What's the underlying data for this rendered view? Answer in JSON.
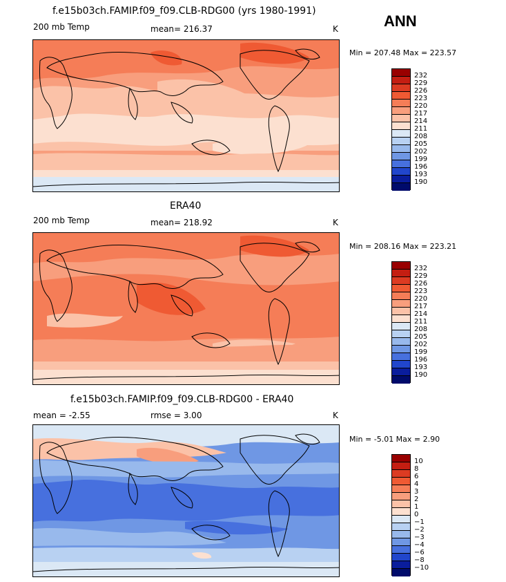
{
  "season": "ANN",
  "panels": [
    {
      "title": "f.e15b03ch.FAMIP.f09_f09.CLB-RDG00 (yrs 1980-1991)",
      "field": "200 mb Temp",
      "stat1": "mean= 216.37",
      "stat2": "",
      "units": "K",
      "minmax": "Min = 207.48 Max = 223.57",
      "colorbar": {
        "labels": [
          "232",
          "229",
          "226",
          "223",
          "220",
          "217",
          "214",
          "211",
          "208",
          "205",
          "202",
          "199",
          "196",
          "193",
          "190"
        ],
        "colors": [
          "#990000",
          "#c41e12",
          "#dc3b22",
          "#ef5a33",
          "#f57d57",
          "#f89e7d",
          "#fbc2a8",
          "#fce0d0",
          "#dbe8f5",
          "#b8d1f2",
          "#98b9ec",
          "#6f97e4",
          "#4770de",
          "#2146cc",
          "#0a1d9c",
          "#000b6b"
        ]
      }
    },
    {
      "title": "ERA40",
      "field": "200 mb Temp",
      "stat1": "mean= 218.92",
      "stat2": "",
      "units": "K",
      "minmax": "Min = 208.16 Max = 223.21",
      "colorbar": {
        "labels": [
          "232",
          "229",
          "226",
          "223",
          "220",
          "217",
          "214",
          "211",
          "208",
          "205",
          "202",
          "199",
          "196",
          "193",
          "190"
        ],
        "colors": [
          "#990000",
          "#c41e12",
          "#dc3b22",
          "#ef5a33",
          "#f57d57",
          "#f89e7d",
          "#fbc2a8",
          "#fce0d0",
          "#dbe8f5",
          "#b8d1f2",
          "#98b9ec",
          "#6f97e4",
          "#4770de",
          "#2146cc",
          "#0a1d9c",
          "#000b6b"
        ]
      }
    },
    {
      "title": "f.e15b03ch.FAMIP.f09_f09.CLB-RDG00 - ERA40",
      "field": "",
      "stat1": "mean =   -2.55",
      "stat2": "rmse =    3.00",
      "units": "K",
      "minmax": "Min =  -5.01 Max =    2.90",
      "colorbar": {
        "labels": [
          "10",
          "8",
          "6",
          "4",
          "3",
          "2",
          "1",
          "0",
          "−1",
          "−2",
          "−3",
          "−4",
          "−6",
          "−8",
          "−10"
        ],
        "colors": [
          "#990000",
          "#c41e12",
          "#dc3b22",
          "#ef5a33",
          "#f57d57",
          "#f89e7d",
          "#fbc2a8",
          "#fce0d0",
          "#dbe8f5",
          "#b8d1f2",
          "#98b9ec",
          "#6f97e4",
          "#4770de",
          "#2146cc",
          "#0a1d9c",
          "#000b6b"
        ]
      }
    }
  ]
}
